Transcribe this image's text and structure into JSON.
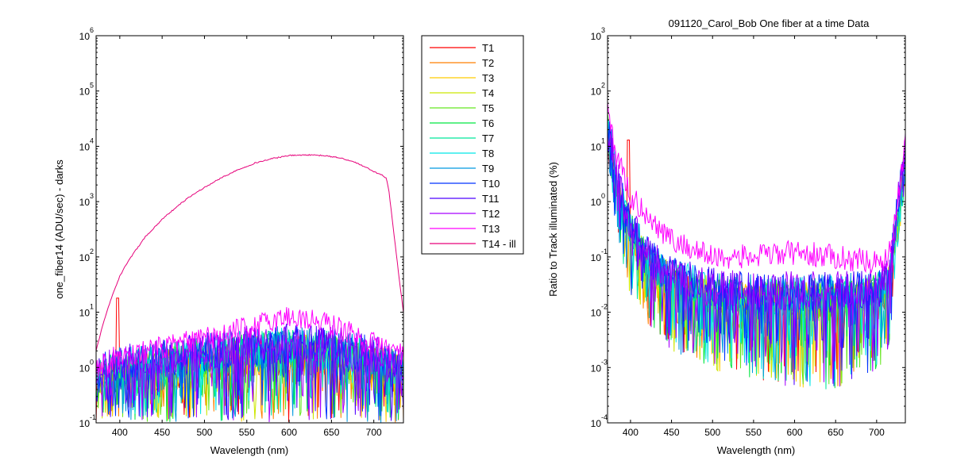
{
  "chart_data": [
    {
      "type": "line",
      "title": "",
      "xlabel": "Wavelength (nm)",
      "ylabel": "one_fiber14  (ADU/sec) - darks",
      "xlim": [
        372,
        735
      ],
      "ylim": [
        0.1,
        1000000
      ],
      "y_scale": "log",
      "grid": false,
      "x_ticks": [
        400,
        450,
        500,
        550,
        600,
        650,
        700
      ],
      "y_ticks": [
        {
          "base": "10",
          "exp": "-1",
          "value": 0.1
        },
        {
          "base": "10",
          "exp": "0",
          "value": 1
        },
        {
          "base": "10",
          "exp": "1",
          "value": 10
        },
        {
          "base": "10",
          "exp": "2",
          "value": 100
        },
        {
          "base": "10",
          "exp": "3",
          "value": 1000
        },
        {
          "base": "10",
          "exp": "4",
          "value": 10000
        },
        {
          "base": "10",
          "exp": "5",
          "value": 100000
        },
        {
          "base": "10",
          "exp": "6",
          "value": 1000000
        }
      ],
      "illuminated_curve": {
        "name": "T14 - ill",
        "color": "#e6007a",
        "x": [
          372,
          380,
          390,
          400,
          410,
          420,
          430,
          440,
          450,
          460,
          470,
          480,
          490,
          500,
          520,
          540,
          560,
          580,
          600,
          620,
          640,
          660,
          680,
          700,
          710,
          715,
          718,
          725,
          730,
          735
        ],
        "y": [
          2,
          6,
          18,
          45,
          85,
          140,
          230,
          330,
          480,
          650,
          870,
          1150,
          1450,
          1800,
          2700,
          3800,
          5000,
          6000,
          6800,
          7000,
          6800,
          6200,
          5000,
          3500,
          3000,
          2600,
          1500,
          180,
          40,
          10
        ]
      },
      "other_series_envelope": {
        "x": [
          372,
          400,
          450,
          500,
          550,
          600,
          650,
          700,
          735
        ],
        "y_typical": [
          0.9,
          1.2,
          1.6,
          2.0,
          2.6,
          3.0,
          2.7,
          1.8,
          1.2
        ],
        "y_min": [
          0.1,
          0.1,
          0.1,
          0.1,
          0.1,
          0.1,
          0.1,
          0.1,
          0.1
        ]
      },
      "t13_envelope": {
        "x": [
          372,
          400,
          450,
          500,
          550,
          600,
          650,
          700,
          735
        ],
        "y": [
          1.0,
          1.6,
          2.2,
          3.2,
          5.0,
          8.5,
          6.0,
          2.6,
          1.8
        ]
      },
      "t1_spike": {
        "x": 397,
        "y": 18
      }
    },
    {
      "type": "line",
      "title": "091120_Carol_Bob  One fiber at a time Data",
      "xlabel": "Wavelength (nm)",
      "ylabel": "Ratio to Track illuminated (%)",
      "xlim": [
        372,
        735
      ],
      "ylim": [
        0.0001,
        1000
      ],
      "y_scale": "log",
      "grid": false,
      "x_ticks": [
        400,
        450,
        500,
        550,
        600,
        650,
        700
      ],
      "y_ticks": [
        {
          "base": "10",
          "exp": "-4",
          "value": 0.0001
        },
        {
          "base": "10",
          "exp": "-3",
          "value": 0.001
        },
        {
          "base": "10",
          "exp": "-2",
          "value": 0.01
        },
        {
          "base": "10",
          "exp": "-1",
          "value": 0.1
        },
        {
          "base": "10",
          "exp": "0",
          "value": 1
        },
        {
          "base": "10",
          "exp": "1",
          "value": 10
        },
        {
          "base": "10",
          "exp": "2",
          "value": 100
        },
        {
          "base": "10",
          "exp": "3",
          "value": 1000
        }
      ],
      "series_envelope": {
        "x": [
          372,
          380,
          390,
          400,
          420,
          450,
          500,
          550,
          600,
          650,
          700,
          715,
          725,
          735
        ],
        "y_typical": [
          30,
          5,
          1.2,
          0.4,
          0.12,
          0.05,
          0.03,
          0.025,
          0.025,
          0.025,
          0.03,
          0.05,
          0.8,
          8
        ],
        "y_min": [
          5,
          0.5,
          0.06,
          0.02,
          0.006,
          0.002,
          0.0009,
          0.0006,
          0.0004,
          0.0004,
          0.0008,
          0.002,
          0.1,
          1
        ]
      },
      "t13_envelope": {
        "x": [
          372,
          380,
          400,
          450,
          500,
          550,
          600,
          650,
          700,
          715,
          725,
          735
        ],
        "y": [
          60,
          10,
          1.2,
          0.2,
          0.1,
          0.1,
          0.12,
          0.1,
          0.08,
          0.1,
          1,
          15
        ]
      },
      "t1_spike": {
        "x": 397,
        "y": 13
      }
    }
  ],
  "legend": {
    "placement": "right of left plot",
    "entries": [
      {
        "label": "T1",
        "color": "#ff0000"
      },
      {
        "label": "T2",
        "color": "#ff7f00"
      },
      {
        "label": "T3",
        "color": "#ffcc00"
      },
      {
        "label": "T4",
        "color": "#cce600"
      },
      {
        "label": "T5",
        "color": "#66e620"
      },
      {
        "label": "T6",
        "color": "#00e640"
      },
      {
        "label": "T7",
        "color": "#00e69a"
      },
      {
        "label": "T8",
        "color": "#00e6e6"
      },
      {
        "label": "T9",
        "color": "#0099e0"
      },
      {
        "label": "T10",
        "color": "#0033ff"
      },
      {
        "label": "T11",
        "color": "#4d00ff"
      },
      {
        "label": "T12",
        "color": "#a600ff"
      },
      {
        "label": "T13",
        "color": "#ff00ff"
      },
      {
        "label": "T14 - ill",
        "color": "#e6007a"
      }
    ]
  }
}
